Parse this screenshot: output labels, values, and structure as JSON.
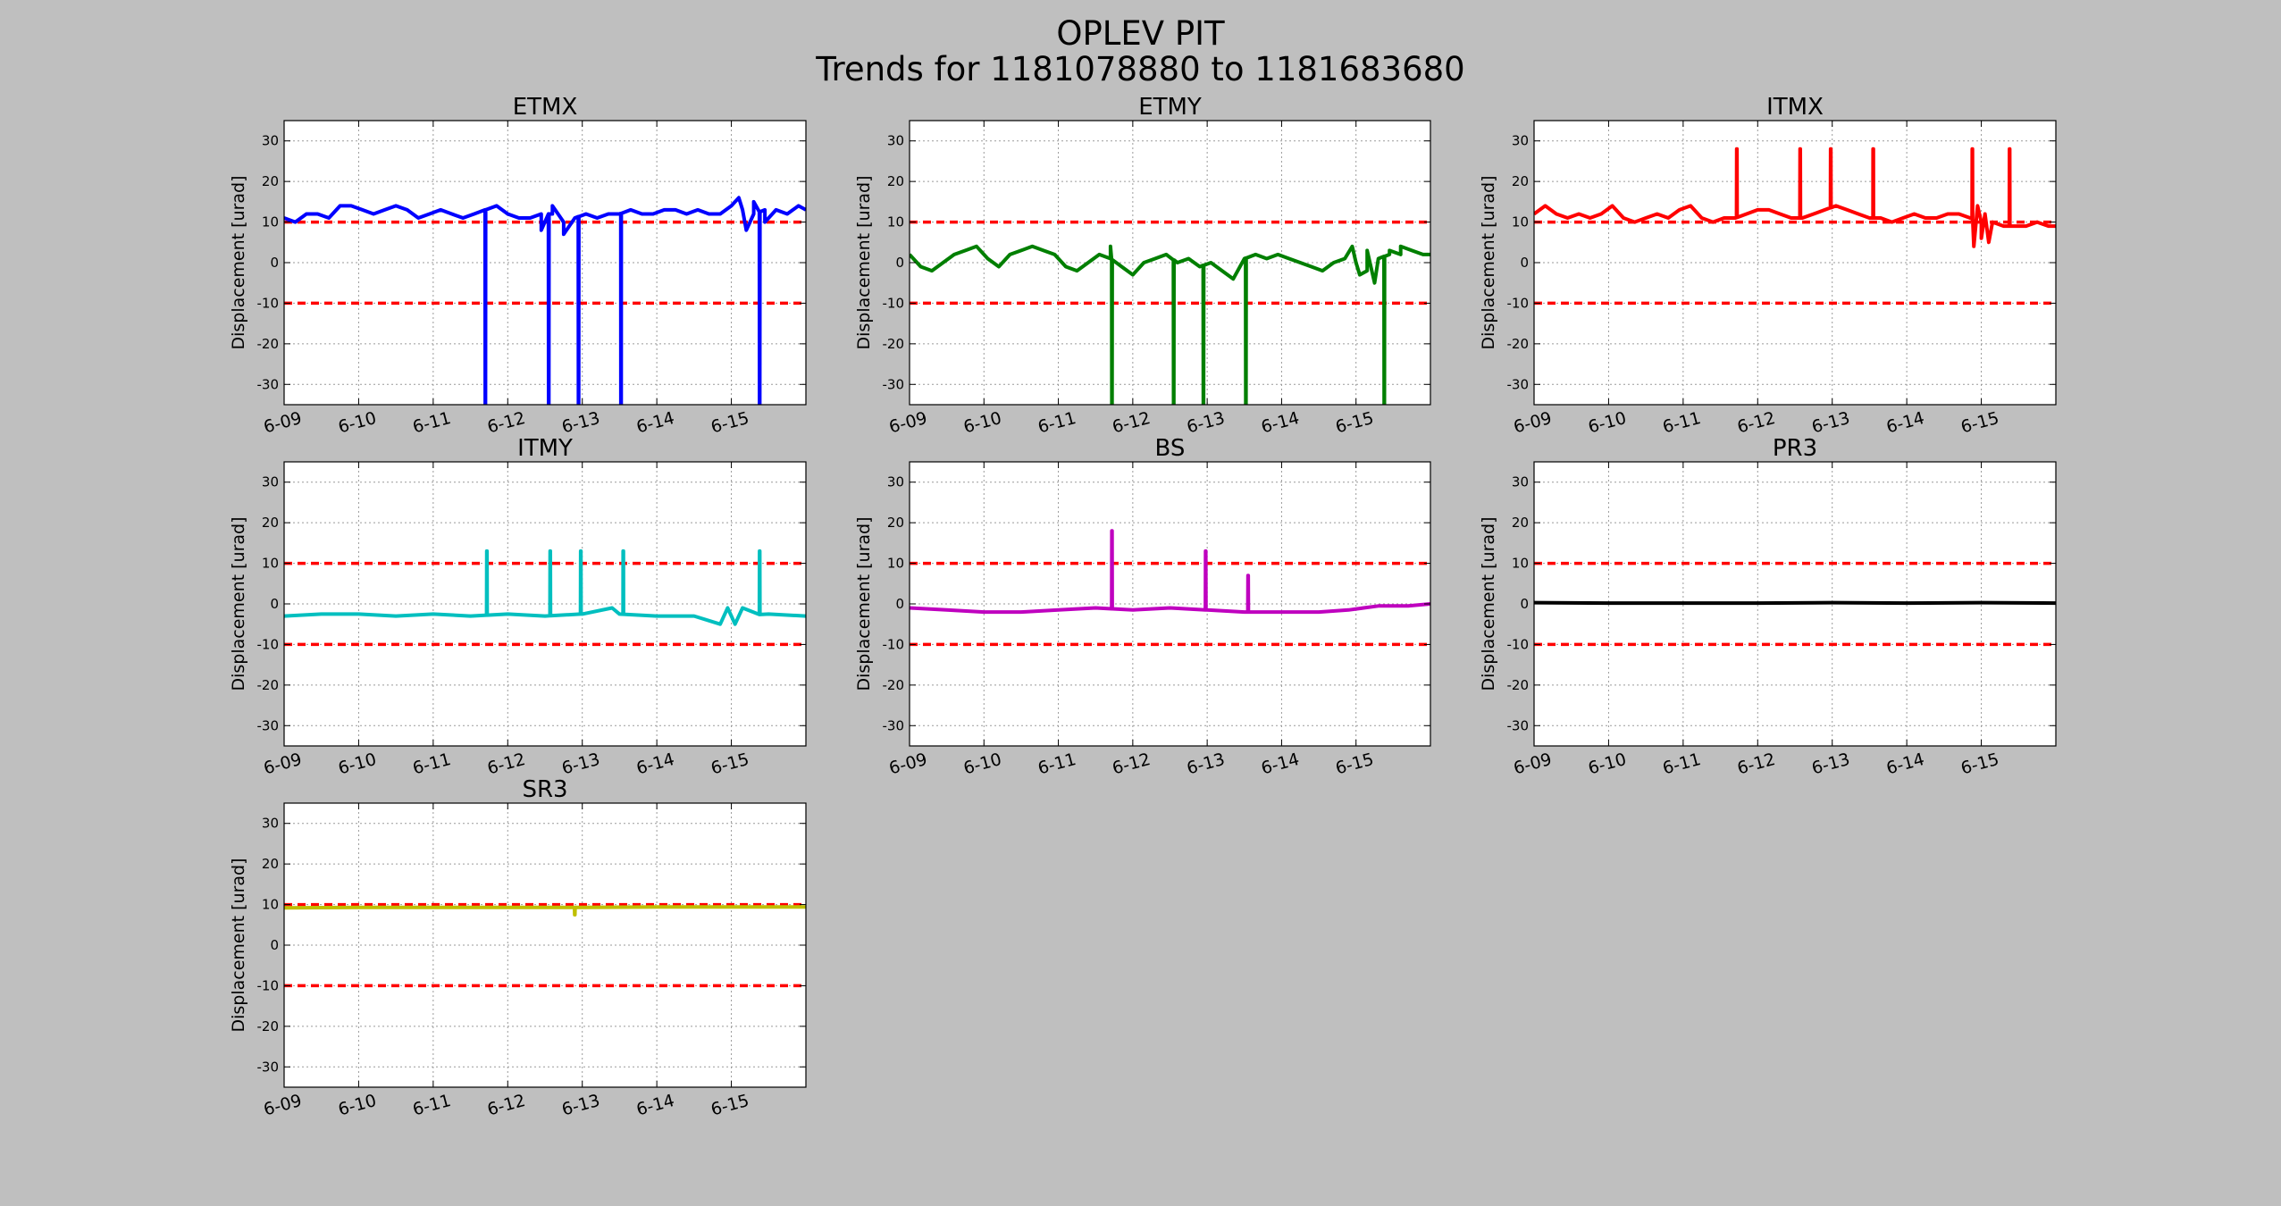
{
  "figure": {
    "title_line1": "OPLEV PIT",
    "title_line2": "Trends for 1181078880 to 1181683680",
    "background": "#bfbfbf",
    "threshold_color": "#ff0000"
  },
  "chart_data": [
    {
      "type": "line",
      "title": "ETMX",
      "ylabel": "Displacement [urad]",
      "xlabel": "",
      "xticks": [
        "6-09",
        "6-10",
        "6-11",
        "6-12",
        "6-13",
        "6-14",
        "6-15"
      ],
      "xlim": [
        0,
        7
      ],
      "ylim": [
        -35,
        35
      ],
      "yticks": [
        -30,
        -20,
        -10,
        0,
        10,
        20,
        30
      ],
      "grid": true,
      "thresholds": [
        10,
        -10
      ],
      "series": [
        {
          "color": "#0000ff",
          "x": [
            0,
            0.15,
            0.3,
            0.45,
            0.6,
            0.75,
            0.9,
            1.05,
            1.2,
            1.35,
            1.5,
            1.65,
            1.8,
            1.95,
            2.1,
            2.25,
            2.4,
            2.55,
            2.7,
            2.85,
            3.0,
            3.15,
            3.3,
            3.45,
            3.6,
            3.75,
            3.9,
            4.05,
            4.2,
            4.35,
            4.5,
            4.65,
            4.8,
            4.95,
            5.1,
            5.25,
            5.4,
            5.55,
            5.7,
            5.85,
            6.0,
            6.15,
            6.3,
            6.45,
            6.6,
            6.75,
            6.9,
            7.0
          ],
          "y": [
            11,
            10,
            12,
            12,
            11,
            14,
            14,
            13,
            12,
            13,
            14,
            13,
            11,
            12,
            13,
            12,
            11,
            12,
            13,
            14,
            12,
            11,
            11,
            12,
            12,
            10,
            11,
            12,
            11,
            12,
            12,
            13,
            12,
            12,
            13,
            13,
            12,
            13,
            12,
            12,
            14,
            13,
            12,
            13,
            13,
            12,
            14,
            13
          ],
          "spikes": [
            {
              "x": 2.7,
              "y": -35
            },
            {
              "x": 3.55,
              "y": -35
            },
            {
              "x": 3.95,
              "y": -35
            },
            {
              "x": 4.52,
              "y": -35
            },
            {
              "x": 6.38,
              "y": -35
            }
          ],
          "noise": [
            {
              "x": 3.45,
              "y": 8
            },
            {
              "x": 3.6,
              "y": 14
            },
            {
              "x": 3.75,
              "y": 7
            },
            {
              "x": 6.1,
              "y": 16
            },
            {
              "x": 6.2,
              "y": 8
            },
            {
              "x": 6.3,
              "y": 15
            },
            {
              "x": 6.45,
              "y": 10
            }
          ]
        }
      ]
    },
    {
      "type": "line",
      "title": "ETMY",
      "ylabel": "Displacement [urad]",
      "xlabel": "",
      "xticks": [
        "6-09",
        "6-10",
        "6-11",
        "6-12",
        "6-13",
        "6-14",
        "6-15"
      ],
      "xlim": [
        0,
        7
      ],
      "ylim": [
        -35,
        35
      ],
      "yticks": [
        -30,
        -20,
        -10,
        0,
        10,
        20,
        30
      ],
      "grid": true,
      "thresholds": [
        10,
        -10
      ],
      "series": [
        {
          "color": "#007f00",
          "x": [
            0,
            0.15,
            0.3,
            0.45,
            0.6,
            0.75,
            0.9,
            1.05,
            1.2,
            1.35,
            1.5,
            1.65,
            1.8,
            1.95,
            2.1,
            2.25,
            2.4,
            2.55,
            2.7,
            2.85,
            3.0,
            3.15,
            3.3,
            3.45,
            3.6,
            3.75,
            3.9,
            4.05,
            4.2,
            4.35,
            4.5,
            4.65,
            4.8,
            4.95,
            5.1,
            5.25,
            5.4,
            5.55,
            5.7,
            5.85,
            6.0,
            6.15,
            6.3,
            6.45,
            6.6,
            6.75,
            6.9,
            7.0
          ],
          "y": [
            2,
            -1,
            -2,
            0,
            2,
            3,
            4,
            1,
            -1,
            2,
            3,
            4,
            3,
            2,
            -1,
            -2,
            0,
            2,
            1,
            -1,
            -3,
            0,
            1,
            2,
            0,
            1,
            -1,
            0,
            -2,
            -4,
            1,
            2,
            1,
            2,
            1,
            0,
            -1,
            -2,
            0,
            1,
            0,
            -2,
            1,
            2,
            2,
            3,
            2,
            2
          ],
          "spikes": [
            {
              "x": 2.72,
              "y": -35
            },
            {
              "x": 3.55,
              "y": -35
            },
            {
              "x": 3.95,
              "y": -35
            },
            {
              "x": 4.52,
              "y": -35
            },
            {
              "x": 6.38,
              "y": -35
            }
          ],
          "noise": [
            {
              "x": 2.7,
              "y": 4
            },
            {
              "x": 5.95,
              "y": 4
            },
            {
              "x": 6.05,
              "y": -3
            },
            {
              "x": 6.15,
              "y": 3
            },
            {
              "x": 6.25,
              "y": -5
            },
            {
              "x": 6.45,
              "y": 3
            },
            {
              "x": 6.6,
              "y": 4
            }
          ]
        }
      ]
    },
    {
      "type": "line",
      "title": "ITMX",
      "ylabel": "Displacement [urad]",
      "xlabel": "",
      "xticks": [
        "6-09",
        "6-10",
        "6-11",
        "6-12",
        "6-13",
        "6-14",
        "6-15"
      ],
      "xlim": [
        0,
        7
      ],
      "ylim": [
        -35,
        35
      ],
      "yticks": [
        -30,
        -20,
        -10,
        0,
        10,
        20,
        30
      ],
      "grid": true,
      "thresholds": [
        10,
        -10
      ],
      "series": [
        {
          "color": "#ff0000",
          "x": [
            0,
            0.15,
            0.3,
            0.45,
            0.6,
            0.75,
            0.9,
            1.05,
            1.2,
            1.35,
            1.5,
            1.65,
            1.8,
            1.95,
            2.1,
            2.25,
            2.4,
            2.55,
            2.7,
            2.85,
            3.0,
            3.15,
            3.3,
            3.45,
            3.6,
            3.75,
            3.9,
            4.05,
            4.2,
            4.35,
            4.5,
            4.65,
            4.8,
            4.95,
            5.1,
            5.25,
            5.4,
            5.55,
            5.7,
            5.85,
            6.0,
            6.15,
            6.3,
            6.45,
            6.6,
            6.75,
            6.9,
            7.0
          ],
          "y": [
            12,
            14,
            12,
            11,
            12,
            11,
            12,
            14,
            11,
            10,
            11,
            12,
            11,
            13,
            14,
            11,
            10,
            11,
            11,
            12,
            13,
            13,
            12,
            11,
            11,
            12,
            13,
            14,
            13,
            12,
            11,
            11,
            10,
            11,
            12,
            11,
            11,
            12,
            12,
            11,
            10,
            10,
            9,
            9,
            9,
            10,
            9,
            9
          ],
          "spikes": [
            {
              "x": 2.72,
              "y": 28
            },
            {
              "x": 3.57,
              "y": 28
            },
            {
              "x": 3.98,
              "y": 28
            },
            {
              "x": 4.55,
              "y": 28
            },
            {
              "x": 5.88,
              "y": 28
            },
            {
              "x": 6.38,
              "y": 28
            }
          ],
          "noise": [
            {
              "x": 5.9,
              "y": 4
            },
            {
              "x": 5.95,
              "y": 14
            },
            {
              "x": 6.0,
              "y": 6
            },
            {
              "x": 6.05,
              "y": 12
            },
            {
              "x": 6.1,
              "y": 5
            }
          ]
        }
      ]
    },
    {
      "type": "line",
      "title": "ITMY",
      "ylabel": "Displacement [urad]",
      "xlabel": "",
      "xticks": [
        "6-09",
        "6-10",
        "6-11",
        "6-12",
        "6-13",
        "6-14",
        "6-15"
      ],
      "xlim": [
        0,
        7
      ],
      "ylim": [
        -35,
        35
      ],
      "yticks": [
        -30,
        -20,
        -10,
        0,
        10,
        20,
        30
      ],
      "grid": true,
      "thresholds": [
        10,
        -10
      ],
      "series": [
        {
          "color": "#00bfbf",
          "x": [
            0,
            0.5,
            1.0,
            1.5,
            2.0,
            2.5,
            3.0,
            3.5,
            4.0,
            4.5,
            5.0,
            5.5,
            6.0,
            6.5,
            7.0
          ],
          "y": [
            -3,
            -2.5,
            -2.5,
            -3,
            -2.5,
            -3,
            -2.5,
            -3,
            -2.5,
            -2.5,
            -3,
            -3,
            -3,
            -2.5,
            -3
          ],
          "spikes": [
            {
              "x": 2.72,
              "y": 13
            },
            {
              "x": 3.57,
              "y": 13
            },
            {
              "x": 3.98,
              "y": 13
            },
            {
              "x": 4.55,
              "y": 13
            },
            {
              "x": 6.38,
              "y": 13
            }
          ],
          "noise": [
            {
              "x": 4.4,
              "y": -1
            },
            {
              "x": 5.85,
              "y": -5
            },
            {
              "x": 5.95,
              "y": -1
            },
            {
              "x": 6.05,
              "y": -5
            },
            {
              "x": 6.15,
              "y": -1
            }
          ]
        }
      ]
    },
    {
      "type": "line",
      "title": "BS",
      "ylabel": "Displacement [urad]",
      "xlabel": "",
      "xticks": [
        "6-09",
        "6-10",
        "6-11",
        "6-12",
        "6-13",
        "6-14",
        "6-15"
      ],
      "xlim": [
        0,
        7
      ],
      "ylim": [
        -35,
        35
      ],
      "yticks": [
        -30,
        -20,
        -10,
        0,
        10,
        20,
        30
      ],
      "grid": true,
      "thresholds": [
        10,
        -10
      ],
      "series": [
        {
          "color": "#bf00bf",
          "x": [
            0,
            0.5,
            1.0,
            1.5,
            2.0,
            2.5,
            3.0,
            3.5,
            4.0,
            4.5,
            5.0,
            5.5,
            5.9,
            6.3,
            6.7,
            7.0
          ],
          "y": [
            -1,
            -1.5,
            -2,
            -2,
            -1.5,
            -1,
            -1.5,
            -1,
            -1.5,
            -2,
            -2,
            -2,
            -1.5,
            -0.5,
            -0.5,
            0
          ],
          "spikes": [
            {
              "x": 2.72,
              "y": 18
            },
            {
              "x": 3.98,
              "y": 13
            },
            {
              "x": 4.55,
              "y": 7
            }
          ],
          "noise": []
        }
      ]
    },
    {
      "type": "line",
      "title": "PR3",
      "ylabel": "Displacement [urad]",
      "xlabel": "",
      "xticks": [
        "6-09",
        "6-10",
        "6-11",
        "6-12",
        "6-13",
        "6-14",
        "6-15"
      ],
      "xlim": [
        0,
        7
      ],
      "ylim": [
        -35,
        35
      ],
      "yticks": [
        -30,
        -20,
        -10,
        0,
        10,
        20,
        30
      ],
      "grid": true,
      "thresholds": [
        10,
        -10
      ],
      "series": [
        {
          "color": "#000000",
          "x": [
            0,
            1.0,
            2.0,
            3.0,
            4.0,
            5.0,
            6.0,
            7.0
          ],
          "y": [
            0.3,
            0.2,
            0.2,
            0.2,
            0.3,
            0.2,
            0.3,
            0.2
          ],
          "spikes": [],
          "noise": []
        }
      ]
    },
    {
      "type": "line",
      "title": "SR3",
      "ylabel": "Displacement [urad]",
      "xlabel": "",
      "xticks": [
        "6-09",
        "6-10",
        "6-11",
        "6-12",
        "6-13",
        "6-14",
        "6-15"
      ],
      "xlim": [
        0,
        7
      ],
      "ylim": [
        -35,
        35
      ],
      "yticks": [
        -30,
        -20,
        -10,
        0,
        10,
        20,
        30
      ],
      "grid": true,
      "thresholds": [
        10,
        -10
      ],
      "series": [
        {
          "color": "#bfbf00",
          "x": [
            0,
            1.0,
            2.0,
            3.0,
            4.0,
            5.0,
            6.0,
            7.0
          ],
          "y": [
            9.2,
            9.3,
            9.3,
            9.3,
            9.3,
            9.4,
            9.4,
            9.4
          ],
          "spikes": [
            {
              "x": 3.9,
              "y": 7.5
            }
          ],
          "noise": []
        }
      ]
    }
  ]
}
